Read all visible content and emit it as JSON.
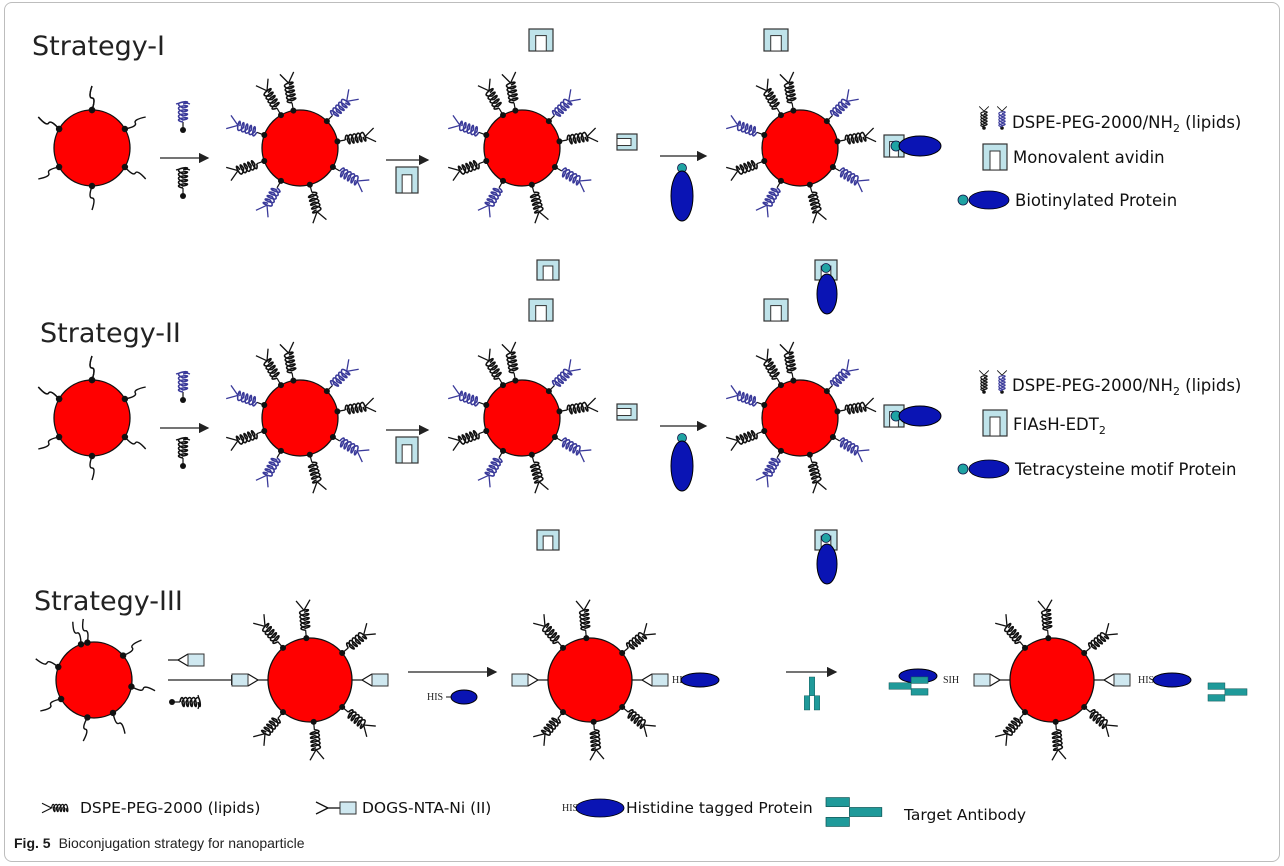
{
  "strategies": [
    {
      "title": "Strategy-I",
      "legend": [
        {
          "text": "DSPE-PEG-2000/NH",
          "subscript": "2",
          "suffix": " (lipids)"
        },
        {
          "text": "Monovalent avidin",
          "subscript": "",
          "suffix": ""
        },
        {
          "text": "Biotinylated Protein",
          "subscript": "",
          "suffix": ""
        }
      ]
    },
    {
      "title": "Strategy-II",
      "legend": [
        {
          "text": "DSPE-PEG-2000/NH",
          "subscript": "2",
          "suffix": " (lipids)"
        },
        {
          "text": "FIAsH-EDT",
          "subscript": "2",
          "suffix": ""
        },
        {
          "text": "Tetracysteine motif Protein",
          "subscript": "",
          "suffix": ""
        }
      ]
    },
    {
      "title": "Strategy-III",
      "legend": [
        {
          "text": "DSPE-PEG-2000 (lipids)"
        },
        {
          "text": "DOGS-NTA-Ni (II)"
        },
        {
          "text": "Histidine tagged Protein"
        },
        {
          "text": "Target Antibody"
        }
      ]
    }
  ],
  "tags": {
    "his": "HIS",
    "his_reversed": "SIH"
  },
  "caption": {
    "label": "Fig. 5",
    "text": "Bioconjugation strategy for nanoparticle"
  },
  "colors": {
    "particle": "#ff0000",
    "lipid_blue": "#3a3a9a",
    "lipid_black": "#111111",
    "protein": "#0a14b4",
    "biotin": "#1fa3a3",
    "avidin": "#bfe3ea",
    "antibody": "#1f9a9a",
    "nta": "#cfe8f0"
  }
}
